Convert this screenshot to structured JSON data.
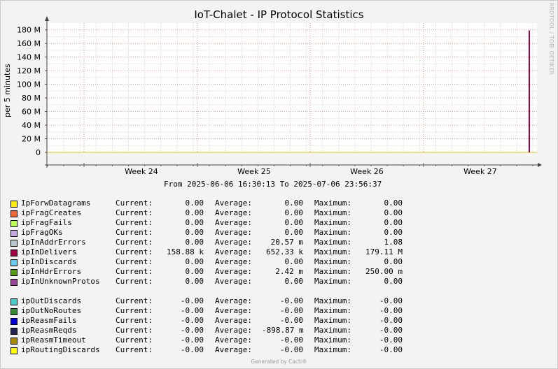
{
  "chart_data": {
    "type": "line",
    "title": "IoT-Chalet - IP Protocol Statistics",
    "ylabel": "per 5 minutes",
    "ylim": [
      0,
      190000000
    ],
    "y_ticks": [
      {
        "value": 0,
        "label": "0"
      },
      {
        "value": 20000000,
        "label": "20 M"
      },
      {
        "value": 40000000,
        "label": "40 M"
      },
      {
        "value": 60000000,
        "label": "60 M"
      },
      {
        "value": 80000000,
        "label": "80 M"
      },
      {
        "value": 100000000,
        "label": "100 M"
      },
      {
        "value": 120000000,
        "label": "120 M"
      },
      {
        "value": 140000000,
        "label": "140 M"
      },
      {
        "value": 160000000,
        "label": "160 M"
      },
      {
        "value": 180000000,
        "label": "180 M"
      }
    ],
    "x_ticks": [
      "Week 24",
      "Week 25",
      "Week 26",
      "Week 27"
    ],
    "x_start": "2025-06-06 16:30:13",
    "x_end": "2025-07-06 23:56:37",
    "grid": true,
    "spike": {
      "series": "ipInDelivers",
      "value": 179110000,
      "color": "#a0004a"
    }
  },
  "header": {
    "watermark": "RRDTOOL / TOBI OETIKER",
    "range_text": "From 2025-06-06 16:30:13 To 2025-07-06 23:56:37"
  },
  "labels": {
    "current": "Current:",
    "average": "Average:",
    "maximum": "Maximum:"
  },
  "legend": [
    {
      "name": "IpForwDatagrams",
      "color": "#ffef00",
      "current": "0.00",
      "average": "0.00",
      "maximum": "0.00"
    },
    {
      "name": "ipFragCreates",
      "color": "#ee6633",
      "current": "0.00",
      "average": "0.00",
      "maximum": "0.00"
    },
    {
      "name": "ipFragFails",
      "color": "#bbff55",
      "current": "0.00",
      "average": "0.00",
      "maximum": "0.00"
    },
    {
      "name": "ipFragOKs",
      "color": "#c8a8e0",
      "current": "0.00",
      "average": "0.00",
      "maximum": "0.00"
    },
    {
      "name": "ipInAddrErrors",
      "color": "#b8c8c8",
      "current": "0.00",
      "average": "20.57 m",
      "maximum": "1.08"
    },
    {
      "name": "ipInDelivers",
      "color": "#a0004a",
      "current": "158.88 k",
      "average": "652.33 k",
      "maximum": "179.11 M"
    },
    {
      "name": "ipInDiscards",
      "color": "#66ccee",
      "current": "0.00",
      "average": "0.00",
      "maximum": "0.00"
    },
    {
      "name": "ipInHdrErrors",
      "color": "#559911",
      "current": "0.00",
      "average": "2.42 m",
      "maximum": "250.00 m"
    },
    {
      "name": "ipInUnknownProtos",
      "color": "#994499",
      "current": "0.00",
      "average": "0.00",
      "maximum": "0.00"
    },
    {
      "name": "ipOutDiscards",
      "color": "#44cccc",
      "current": "-0.00",
      "average": "-0.00",
      "maximum": "-0.00",
      "gap": true
    },
    {
      "name": "ipOutNoRoutes",
      "color": "#338833",
      "current": "-0.00",
      "average": "-0.00",
      "maximum": "-0.00"
    },
    {
      "name": "ipReasmFails",
      "color": "#0000dd",
      "current": "-0.00",
      "average": "-0.00",
      "maximum": "-0.00"
    },
    {
      "name": "ipReasmReqds",
      "color": "#222255",
      "current": "-0.00",
      "average": "-898.87 m",
      "maximum": "-0.00"
    },
    {
      "name": "ipReasmTimeout",
      "color": "#aa8800",
      "current": "-0.00",
      "average": "-0.00",
      "maximum": "-0.00"
    },
    {
      "name": "ipRoutingDiscards",
      "color": "#ffff00",
      "current": "-0.00",
      "average": "-0.00",
      "maximum": "-0.00"
    }
  ],
  "footer": "Generated by Cacti®"
}
